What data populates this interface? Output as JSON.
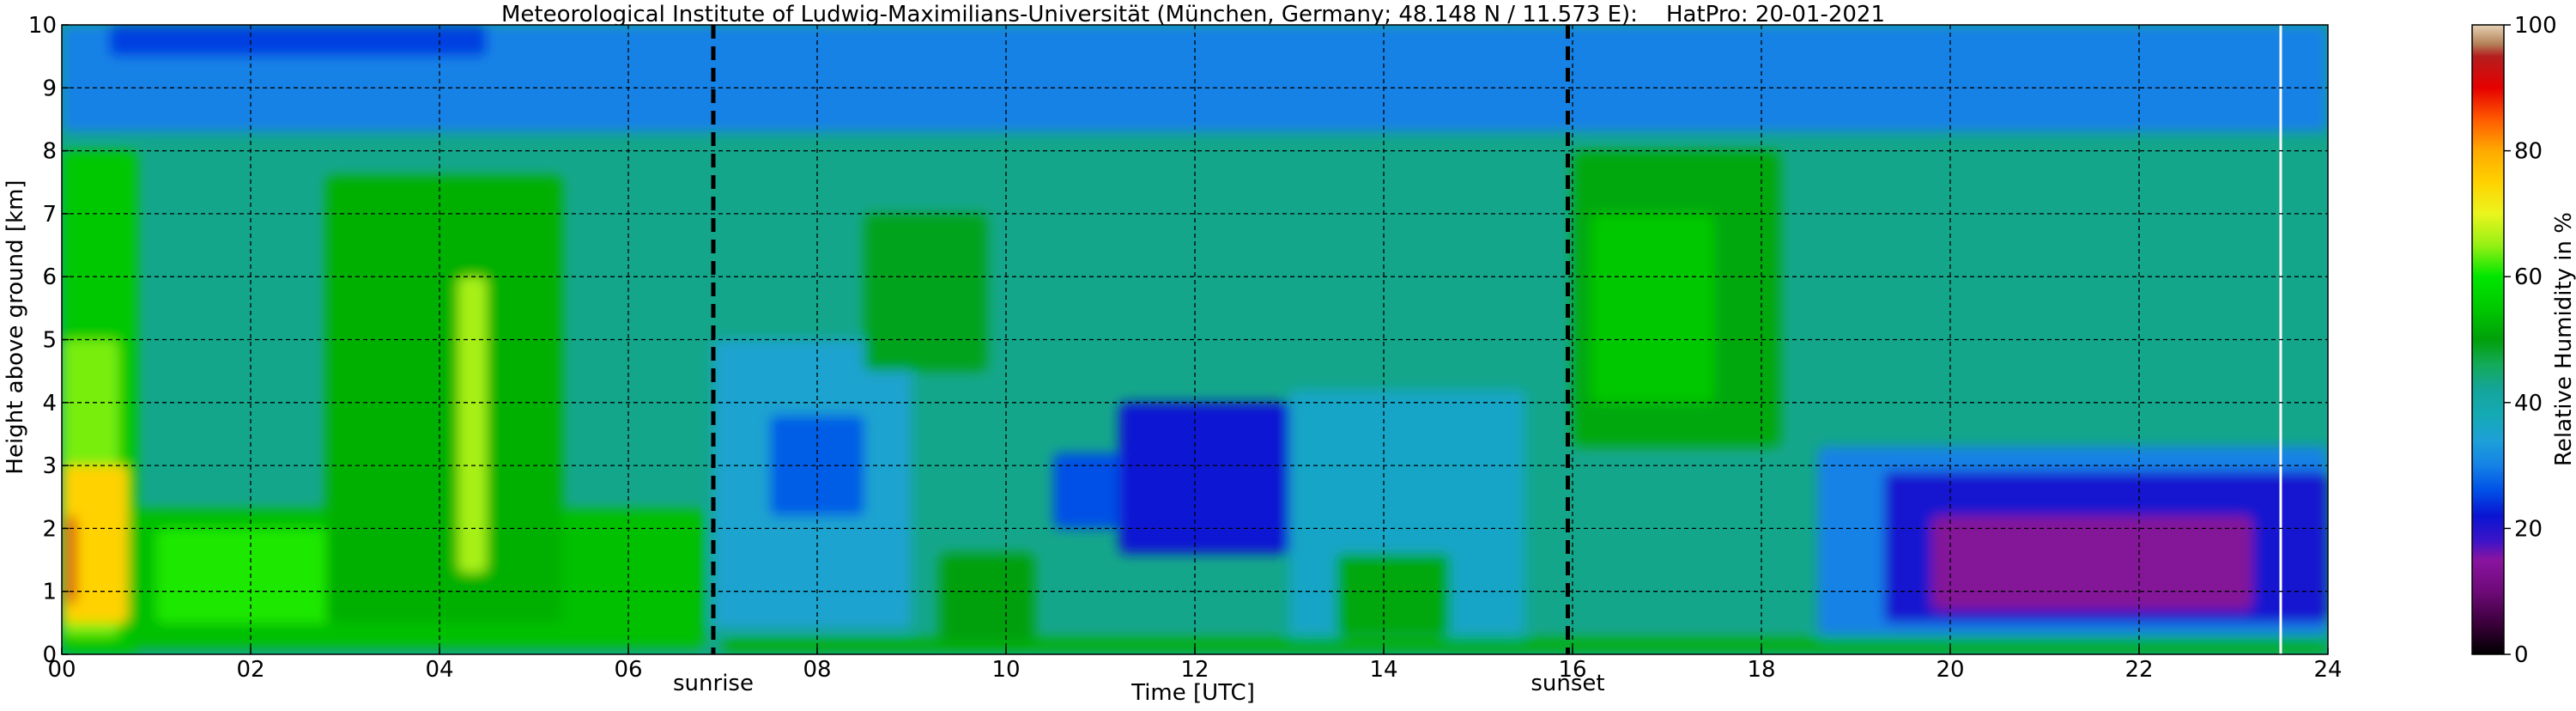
{
  "chart_data": {
    "type": "heatmap",
    "title": "Meteorological Institute of Ludwig-Maximilians-Universität (München, Germany; 48.148 N / 11.573 E):    HatPro: 20-01-2021",
    "xlabel": "Time [UTC]",
    "ylabel": "Height above ground [km]",
    "colorbar_label": "Relative Humidity in %",
    "xlim": [
      0,
      24
    ],
    "ylim": [
      0,
      10
    ],
    "x_ticks": [
      "00",
      "02",
      "04",
      "06",
      "08",
      "10",
      "12",
      "14",
      "16",
      "18",
      "20",
      "22",
      "24"
    ],
    "y_ticks": [
      "0",
      "1",
      "2",
      "3",
      "4",
      "5",
      "6",
      "7",
      "8",
      "9",
      "10"
    ],
    "colorbar_ticks": [
      "0",
      "20",
      "40",
      "60",
      "80",
      "100"
    ],
    "colorbar_range": [
      0,
      100
    ],
    "grid": true,
    "annotations": [
      {
        "label": "sunrise",
        "time": 6.9
      },
      {
        "label": "sunset",
        "time": 15.95
      }
    ],
    "data_gap_line_time": 23.5,
    "colormap": [
      {
        "value": 0,
        "color": "#000000"
      },
      {
        "value": 5,
        "color": "#3c003c"
      },
      {
        "value": 10,
        "color": "#6e0a78"
      },
      {
        "value": 15,
        "color": "#8a14a0"
      },
      {
        "value": 18,
        "color": "#3c14c8"
      },
      {
        "value": 22,
        "color": "#0a14d2"
      },
      {
        "value": 26,
        "color": "#0050e6"
      },
      {
        "value": 30,
        "color": "#1482e6"
      },
      {
        "value": 34,
        "color": "#1ea0d8"
      },
      {
        "value": 38,
        "color": "#14aab4"
      },
      {
        "value": 42,
        "color": "#14a59b"
      },
      {
        "value": 46,
        "color": "#14aa5a"
      },
      {
        "value": 50,
        "color": "#00a00a"
      },
      {
        "value": 55,
        "color": "#00c800"
      },
      {
        "value": 60,
        "color": "#00e600"
      },
      {
        "value": 65,
        "color": "#96f014"
      },
      {
        "value": 70,
        "color": "#ebf51e"
      },
      {
        "value": 75,
        "color": "#ffd200"
      },
      {
        "value": 80,
        "color": "#ffaa00"
      },
      {
        "value": 85,
        "color": "#ff5a00"
      },
      {
        "value": 90,
        "color": "#e60000"
      },
      {
        "value": 95,
        "color": "#b41e1e"
      },
      {
        "value": 97,
        "color": "#b4825a"
      },
      {
        "value": 100,
        "color": "#e6d2b4"
      }
    ],
    "background_field_rh": 43,
    "features": [
      {
        "t_start": 0,
        "t_end": 24,
        "h_bottom": 8.3,
        "h_top": 10,
        "rh": 30
      },
      {
        "t_start": 0.5,
        "t_end": 4.5,
        "h_bottom": 9.5,
        "h_top": 10,
        "rh": 25
      },
      {
        "t_start": 0,
        "t_end": 0.8,
        "h_bottom": 0,
        "h_top": 8,
        "rh": 55
      },
      {
        "t_start": 0,
        "t_end": 0.6,
        "h_bottom": 0.3,
        "h_top": 5,
        "rh": 64
      },
      {
        "t_start": 0,
        "t_end": 0.7,
        "h_bottom": 0.5,
        "h_top": 3,
        "rh": 75
      },
      {
        "t_start": 0.05,
        "t_end": 0.15,
        "h_bottom": 0.8,
        "h_top": 2.2,
        "rh": 92
      },
      {
        "t_start": 0.7,
        "t_end": 6.8,
        "h_bottom": 0.1,
        "h_top": 2.3,
        "rh": 54
      },
      {
        "t_start": 1.0,
        "t_end": 3.0,
        "h_bottom": 0.5,
        "h_top": 2.0,
        "rh": 61
      },
      {
        "t_start": 2.8,
        "t_end": 5.3,
        "h_bottom": 0.5,
        "h_top": 7.6,
        "rh": 52
      },
      {
        "t_start": 4.2,
        "t_end": 4.5,
        "h_bottom": 1.3,
        "h_top": 6.0,
        "rh": 66
      },
      {
        "t_start": 7.0,
        "t_end": 24,
        "h_bottom": 0.05,
        "h_top": 0.25,
        "rh": 52
      },
      {
        "t_start": 6.9,
        "t_end": 9.0,
        "h_bottom": 0.4,
        "h_top": 5.0,
        "rh": 35
      },
      {
        "t_start": 7.5,
        "t_end": 8.5,
        "h_bottom": 2.2,
        "h_top": 3.8,
        "rh": 27
      },
      {
        "t_start": 9.3,
        "t_end": 10.3,
        "h_bottom": 0.2,
        "h_top": 1.6,
        "rh": 50
      },
      {
        "t_start": 8.5,
        "t_end": 9.8,
        "h_bottom": 4.5,
        "h_top": 7.0,
        "rh": 49
      },
      {
        "t_start": 10.5,
        "t_end": 11.5,
        "h_bottom": 2.0,
        "h_top": 3.2,
        "rh": 26
      },
      {
        "t_start": 11.2,
        "t_end": 13.5,
        "h_bottom": 1.6,
        "h_top": 4.0,
        "rh": 22
      },
      {
        "t_start": 13.0,
        "t_end": 15.5,
        "h_bottom": 0.3,
        "h_top": 4.2,
        "rh": 36
      },
      {
        "t_start": 13.5,
        "t_end": 14.7,
        "h_bottom": 0.3,
        "h_top": 1.6,
        "rh": 51
      },
      {
        "t_start": 16.0,
        "t_end": 18.2,
        "h_bottom": 3.3,
        "h_top": 8.0,
        "rh": 51
      },
      {
        "t_start": 16.2,
        "t_end": 17.5,
        "h_bottom": 4.0,
        "h_top": 7.0,
        "rh": 55
      },
      {
        "t_start": 18.6,
        "t_end": 24,
        "h_bottom": 0.3,
        "h_top": 3.3,
        "rh": 30
      },
      {
        "t_start": 19.3,
        "t_end": 24,
        "h_bottom": 0.5,
        "h_top": 2.9,
        "rh": 21
      },
      {
        "t_start": 19.8,
        "t_end": 23.2,
        "h_bottom": 0.7,
        "h_top": 2.2,
        "rh": 14
      }
    ]
  }
}
